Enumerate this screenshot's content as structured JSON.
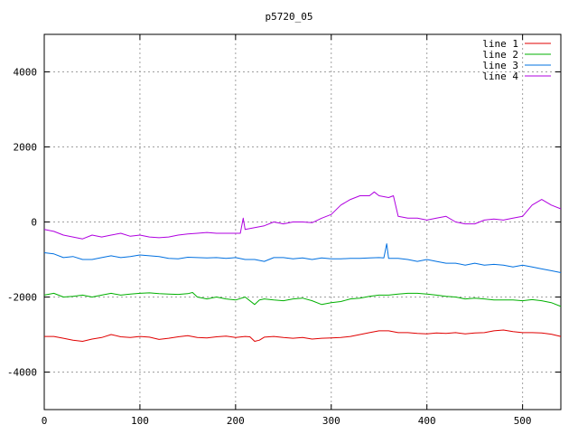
{
  "chart_data": {
    "type": "line",
    "title": "p5720_05",
    "xlim": [
      0,
      540
    ],
    "ylim": [
      -5000,
      5000
    ],
    "xticks": [
      0,
      100,
      200,
      300,
      400,
      500
    ],
    "yticks": [
      -4000,
      -2000,
      0,
      2000,
      4000
    ],
    "xtick_labels": [
      "0",
      "100",
      "200",
      "300",
      "400",
      "500"
    ],
    "ytick_labels": [
      "-4000",
      "-2000",
      "0",
      "2000",
      "4000"
    ],
    "grid": true,
    "legend_position": "top-right",
    "series": [
      {
        "name": "line 1",
        "color": "#e00000",
        "points": [
          [
            0,
            -3050
          ],
          [
            10,
            -3050
          ],
          [
            20,
            -3100
          ],
          [
            30,
            -3150
          ],
          [
            40,
            -3180
          ],
          [
            50,
            -3120
          ],
          [
            60,
            -3080
          ],
          [
            70,
            -3000
          ],
          [
            80,
            -3060
          ],
          [
            90,
            -3080
          ],
          [
            100,
            -3050
          ],
          [
            110,
            -3070
          ],
          [
            120,
            -3130
          ],
          [
            130,
            -3100
          ],
          [
            140,
            -3060
          ],
          [
            150,
            -3030
          ],
          [
            160,
            -3080
          ],
          [
            170,
            -3090
          ],
          [
            180,
            -3060
          ],
          [
            190,
            -3040
          ],
          [
            200,
            -3080
          ],
          [
            210,
            -3050
          ],
          [
            215,
            -3060
          ],
          [
            220,
            -3180
          ],
          [
            225,
            -3150
          ],
          [
            230,
            -3070
          ],
          [
            240,
            -3050
          ],
          [
            250,
            -3080
          ],
          [
            260,
            -3100
          ],
          [
            270,
            -3080
          ],
          [
            280,
            -3120
          ],
          [
            290,
            -3100
          ],
          [
            300,
            -3090
          ],
          [
            310,
            -3080
          ],
          [
            320,
            -3050
          ],
          [
            330,
            -3000
          ],
          [
            340,
            -2950
          ],
          [
            350,
            -2900
          ],
          [
            360,
            -2900
          ],
          [
            370,
            -2950
          ],
          [
            380,
            -2950
          ],
          [
            390,
            -2970
          ],
          [
            400,
            -2980
          ],
          [
            410,
            -2960
          ],
          [
            420,
            -2970
          ],
          [
            430,
            -2950
          ],
          [
            440,
            -2980
          ],
          [
            450,
            -2960
          ],
          [
            460,
            -2950
          ],
          [
            470,
            -2900
          ],
          [
            480,
            -2880
          ],
          [
            490,
            -2920
          ],
          [
            500,
            -2950
          ],
          [
            510,
            -2950
          ],
          [
            520,
            -2960
          ],
          [
            530,
            -2990
          ],
          [
            540,
            -3050
          ]
        ]
      },
      {
        "name": "line 2",
        "color": "#00b000",
        "points": [
          [
            0,
            -1950
          ],
          [
            10,
            -1900
          ],
          [
            20,
            -2000
          ],
          [
            30,
            -1980
          ],
          [
            40,
            -1950
          ],
          [
            50,
            -2000
          ],
          [
            60,
            -1950
          ],
          [
            70,
            -1900
          ],
          [
            80,
            -1950
          ],
          [
            90,
            -1920
          ],
          [
            100,
            -1900
          ],
          [
            110,
            -1890
          ],
          [
            120,
            -1910
          ],
          [
            130,
            -1920
          ],
          [
            140,
            -1930
          ],
          [
            150,
            -1910
          ],
          [
            155,
            -1880
          ],
          [
            160,
            -2000
          ],
          [
            170,
            -2050
          ],
          [
            180,
            -2000
          ],
          [
            190,
            -2050
          ],
          [
            200,
            -2080
          ],
          [
            210,
            -2000
          ],
          [
            220,
            -2200
          ],
          [
            225,
            -2080
          ],
          [
            230,
            -2050
          ],
          [
            240,
            -2080
          ],
          [
            250,
            -2100
          ],
          [
            260,
            -2050
          ],
          [
            270,
            -2030
          ],
          [
            280,
            -2100
          ],
          [
            290,
            -2200
          ],
          [
            300,
            -2150
          ],
          [
            310,
            -2120
          ],
          [
            320,
            -2050
          ],
          [
            330,
            -2030
          ],
          [
            340,
            -1980
          ],
          [
            350,
            -1950
          ],
          [
            360,
            -1950
          ],
          [
            370,
            -1920
          ],
          [
            380,
            -1900
          ],
          [
            390,
            -1900
          ],
          [
            400,
            -1920
          ],
          [
            410,
            -1950
          ],
          [
            420,
            -1980
          ],
          [
            430,
            -2000
          ],
          [
            440,
            -2050
          ],
          [
            450,
            -2030
          ],
          [
            460,
            -2050
          ],
          [
            470,
            -2080
          ],
          [
            480,
            -2080
          ],
          [
            490,
            -2080
          ],
          [
            500,
            -2100
          ],
          [
            510,
            -2070
          ],
          [
            520,
            -2100
          ],
          [
            530,
            -2150
          ],
          [
            540,
            -2250
          ]
        ]
      },
      {
        "name": "line 3",
        "color": "#0070e0",
        "points": [
          [
            0,
            -820
          ],
          [
            10,
            -850
          ],
          [
            20,
            -950
          ],
          [
            30,
            -920
          ],
          [
            40,
            -1000
          ],
          [
            50,
            -1000
          ],
          [
            60,
            -950
          ],
          [
            70,
            -900
          ],
          [
            80,
            -950
          ],
          [
            90,
            -920
          ],
          [
            100,
            -880
          ],
          [
            110,
            -900
          ],
          [
            120,
            -920
          ],
          [
            130,
            -970
          ],
          [
            140,
            -980
          ],
          [
            150,
            -940
          ],
          [
            160,
            -950
          ],
          [
            170,
            -960
          ],
          [
            180,
            -950
          ],
          [
            190,
            -970
          ],
          [
            200,
            -950
          ],
          [
            210,
            -1000
          ],
          [
            220,
            -1000
          ],
          [
            230,
            -1050
          ],
          [
            240,
            -950
          ],
          [
            250,
            -950
          ],
          [
            260,
            -980
          ],
          [
            270,
            -960
          ],
          [
            280,
            -1000
          ],
          [
            290,
            -960
          ],
          [
            300,
            -980
          ],
          [
            310,
            -980
          ],
          [
            320,
            -970
          ],
          [
            330,
            -970
          ],
          [
            340,
            -960
          ],
          [
            350,
            -950
          ],
          [
            355,
            -960
          ],
          [
            358,
            -580
          ],
          [
            360,
            -970
          ],
          [
            370,
            -970
          ],
          [
            380,
            -1000
          ],
          [
            390,
            -1050
          ],
          [
            400,
            -1000
          ],
          [
            410,
            -1050
          ],
          [
            420,
            -1100
          ],
          [
            430,
            -1100
          ],
          [
            440,
            -1150
          ],
          [
            450,
            -1100
          ],
          [
            460,
            -1150
          ],
          [
            470,
            -1130
          ],
          [
            480,
            -1150
          ],
          [
            490,
            -1200
          ],
          [
            500,
            -1150
          ],
          [
            510,
            -1200
          ],
          [
            520,
            -1250
          ],
          [
            530,
            -1300
          ],
          [
            540,
            -1350
          ]
        ]
      },
      {
        "name": "line 4",
        "color": "#b000e0",
        "points": [
          [
            0,
            -200
          ],
          [
            10,
            -250
          ],
          [
            20,
            -350
          ],
          [
            30,
            -400
          ],
          [
            40,
            -450
          ],
          [
            50,
            -350
          ],
          [
            60,
            -400
          ],
          [
            70,
            -350
          ],
          [
            80,
            -300
          ],
          [
            90,
            -380
          ],
          [
            100,
            -350
          ],
          [
            110,
            -400
          ],
          [
            120,
            -420
          ],
          [
            130,
            -400
          ],
          [
            140,
            -350
          ],
          [
            150,
            -320
          ],
          [
            160,
            -300
          ],
          [
            170,
            -280
          ],
          [
            180,
            -300
          ],
          [
            190,
            -300
          ],
          [
            200,
            -300
          ],
          [
            205,
            -300
          ],
          [
            208,
            100
          ],
          [
            210,
            -200
          ],
          [
            220,
            -150
          ],
          [
            230,
            -100
          ],
          [
            240,
            0
          ],
          [
            250,
            -50
          ],
          [
            260,
            0
          ],
          [
            270,
            0
          ],
          [
            280,
            -20
          ],
          [
            290,
            100
          ],
          [
            300,
            200
          ],
          [
            310,
            450
          ],
          [
            320,
            600
          ],
          [
            330,
            700
          ],
          [
            340,
            700
          ],
          [
            345,
            800
          ],
          [
            350,
            700
          ],
          [
            360,
            650
          ],
          [
            365,
            700
          ],
          [
            370,
            150
          ],
          [
            380,
            100
          ],
          [
            390,
            100
          ],
          [
            400,
            50
          ],
          [
            410,
            100
          ],
          [
            420,
            150
          ],
          [
            430,
            0
          ],
          [
            440,
            -50
          ],
          [
            450,
            -50
          ],
          [
            460,
            50
          ],
          [
            470,
            80
          ],
          [
            480,
            50
          ],
          [
            490,
            100
          ],
          [
            500,
            150
          ],
          [
            510,
            450
          ],
          [
            520,
            600
          ],
          [
            530,
            450
          ],
          [
            540,
            350
          ]
        ]
      }
    ]
  }
}
